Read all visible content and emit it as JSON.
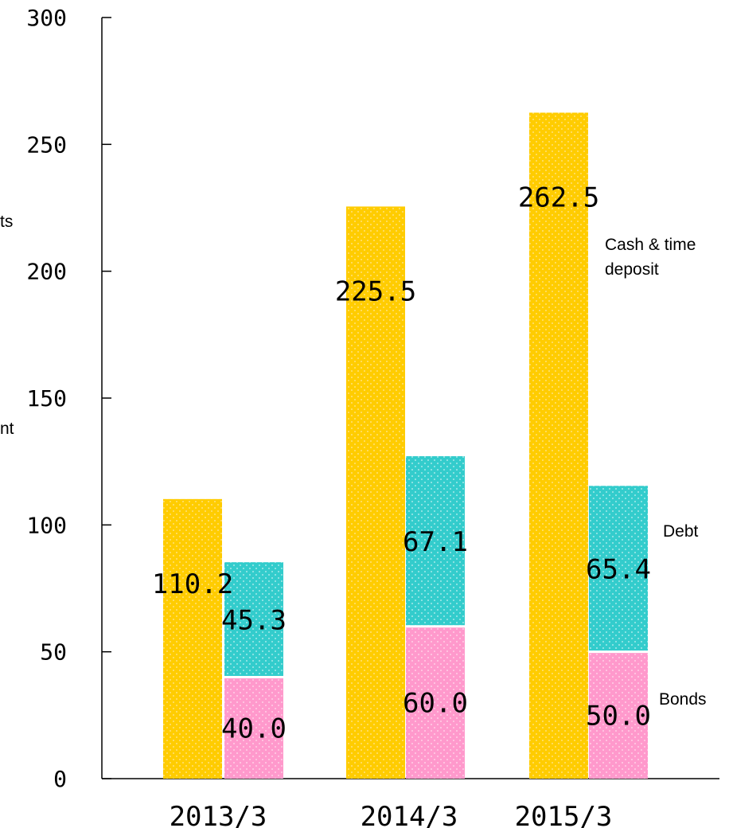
{
  "chart_data": {
    "type": "bar",
    "layout": "grouped-stacked",
    "categories": [
      "2013/3",
      "2014/3",
      "2015/3"
    ],
    "series": [
      {
        "name": "Cash & time deposit",
        "legend_lines": [
          "Cash & time",
          "deposit"
        ],
        "stack": "cash",
        "values": [
          110.2,
          225.5,
          262.5
        ],
        "labels": [
          "110.2",
          "225.5",
          "262.5"
        ],
        "color": "#ffcc00",
        "dot_color": "#ffe27a"
      },
      {
        "name": "Bonds",
        "legend_lines": [
          "Bonds"
        ],
        "stack": "liabilities",
        "values": [
          40.0,
          60.0,
          50.0
        ],
        "labels": [
          "40.0",
          "60.0",
          "50.0"
        ],
        "color": "#ff99cc",
        "dot_color": "#ffd0e6"
      },
      {
        "name": "Debt",
        "legend_lines": [
          "Debt"
        ],
        "stack": "liabilities",
        "values": [
          45.3,
          67.1,
          65.4
        ],
        "labels": [
          "45.3",
          "67.1",
          "65.4"
        ],
        "color": "#33cccc",
        "dot_color": "#a6eaea"
      }
    ],
    "yticks": [
      "0",
      "50",
      "100",
      "150",
      "200",
      "250",
      "300"
    ],
    "ylim": [
      0,
      300
    ],
    "ylabel_fragments": [
      "ts",
      "nt"
    ],
    "grid": false,
    "legend": "right"
  }
}
